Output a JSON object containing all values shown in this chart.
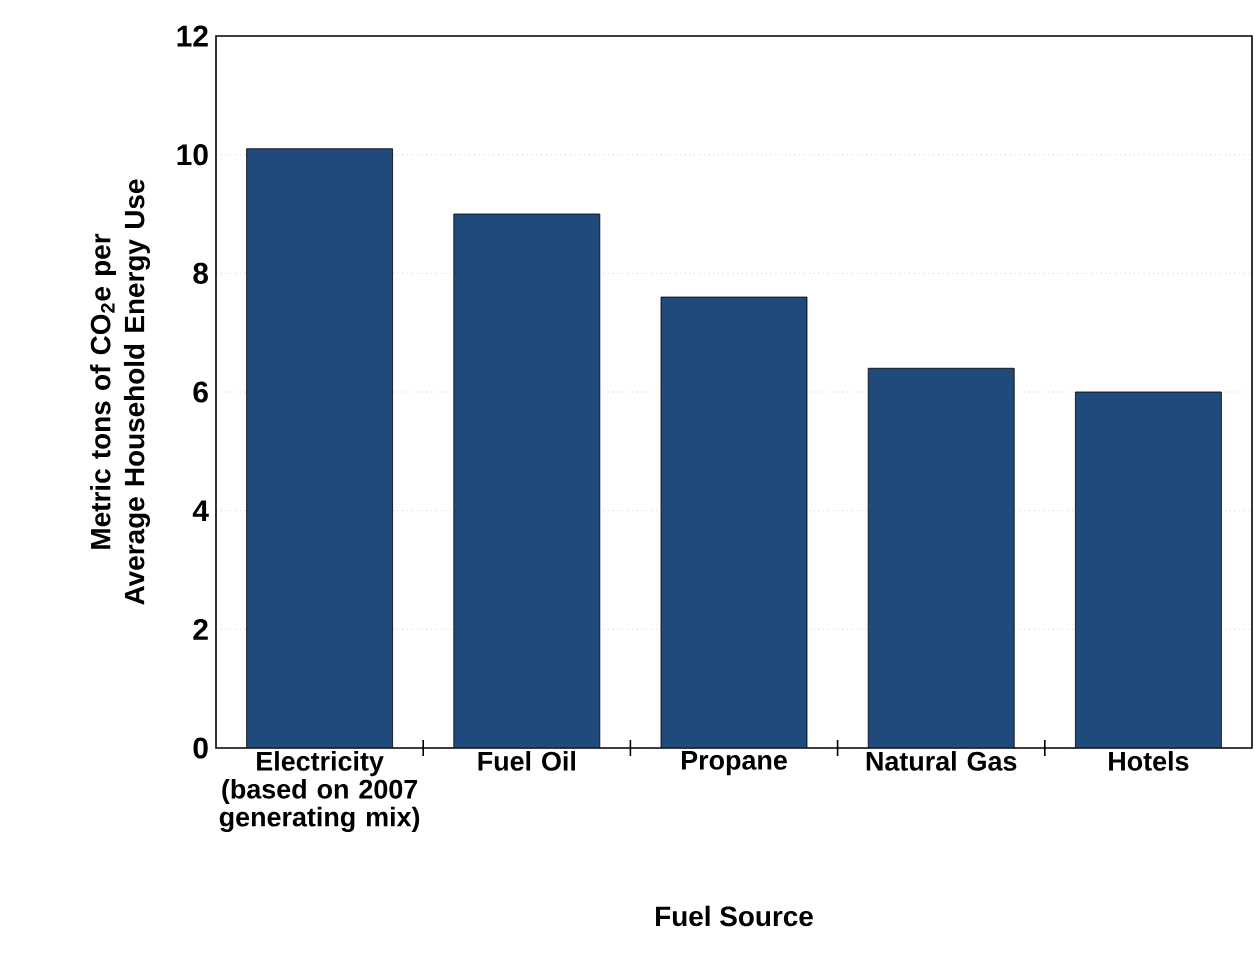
{
  "chart_data": {
    "type": "bar",
    "xlabel": "Fuel Source",
    "ylabel": "Metric tons of CO$_{2}$e per Average Household Energy Use",
    "categories": [
      "Electricity (based on 2007 generating mix)",
      "Fuel Oil",
      "Propane",
      "Natural Gas",
      "Hotels"
    ],
    "values": [
      10.1,
      9.0,
      7.6,
      6.4,
      6.0
    ],
    "color": "#214a7c",
    "ylim": [
      0,
      12
    ],
    "yticks": [
      0,
      2,
      4,
      6,
      8,
      10,
      12
    ],
    "grid": "y"
  }
}
